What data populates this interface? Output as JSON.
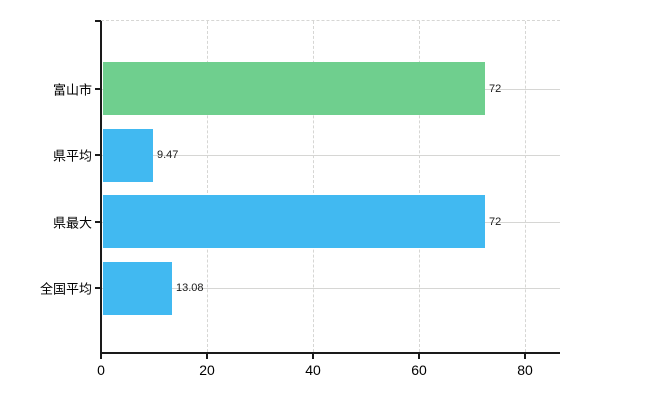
{
  "chart_data": {
    "type": "bar",
    "orientation": "horizontal",
    "title": "",
    "xlabel": "",
    "ylabel": "",
    "categories": [
      "富山市",
      "県平均",
      "県最大",
      "全国平均"
    ],
    "values": [
      72,
      9.47,
      72,
      13.08
    ],
    "value_labels": [
      "72",
      "9.47",
      "72",
      "13.08"
    ],
    "bar_colors": [
      "#6fcf8e",
      "#41b9f1",
      "#41b9f1",
      "#41b9f1"
    ],
    "x_ticks": [
      0,
      20,
      40,
      60,
      80
    ],
    "x_tick_labels": [
      "0",
      "20",
      "40",
      "60",
      "80"
    ],
    "xlim": [
      0,
      86.6
    ],
    "grid": true,
    "legend": false
  },
  "colors": {
    "bar_green": "#6fcf8e",
    "bar_blue": "#41b9f1",
    "grid_line": "#d6d6d4",
    "axis_line": "#1a1a1a",
    "background": "#ffffff",
    "label_text": "#000000"
  }
}
